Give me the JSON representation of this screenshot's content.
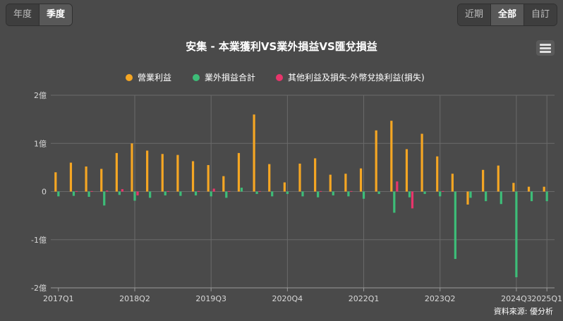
{
  "period_toggle": {
    "items": [
      {
        "label": "年度",
        "active": false
      },
      {
        "label": "季度",
        "active": true
      }
    ]
  },
  "range_toggle": {
    "items": [
      {
        "label": "近期",
        "active": false
      },
      {
        "label": "全部",
        "active": true
      },
      {
        "label": "自訂",
        "active": false
      }
    ]
  },
  "menu": {
    "icon": "hamburger-menu-icon"
  },
  "source_text": "資料來源: 優分析",
  "chart_data": {
    "type": "bar",
    "title": "安集 - 本業獲利VS業外損益VS匯兌損益",
    "xlabel": "",
    "ylabel": "",
    "ylim": [
      -2,
      2
    ],
    "yticks": [
      2,
      1,
      0,
      -1,
      -2
    ],
    "ytick_labels": [
      "2億",
      "1億",
      "0",
      "-1億",
      "-2億"
    ],
    "grid": true,
    "legend_position": "top-center",
    "xtick_labels": [
      "2017Q1",
      "2018Q2",
      "2019Q3",
      "2020Q4",
      "2022Q1",
      "2023Q2",
      "2024Q3",
      "2025Q1"
    ],
    "categories": [
      "2017Q1",
      "2017Q2",
      "2017Q3",
      "2017Q4",
      "2018Q1",
      "2018Q2",
      "2018Q3",
      "2018Q4",
      "2019Q1",
      "2019Q2",
      "2019Q3",
      "2019Q4",
      "2020Q1",
      "2020Q2",
      "2020Q3",
      "2020Q4",
      "2021Q1",
      "2021Q2",
      "2021Q3",
      "2021Q4",
      "2022Q1",
      "2022Q2",
      "2022Q3",
      "2022Q4",
      "2023Q1",
      "2023Q2",
      "2023Q3",
      "2023Q4",
      "2024Q1",
      "2024Q2",
      "2024Q3",
      "2024Q4",
      "2025Q1"
    ],
    "series": [
      {
        "name": "營業利益",
        "color": "#f5a623",
        "values": [
          0.4,
          0.6,
          0.52,
          0.47,
          0.8,
          1.0,
          0.85,
          0.78,
          0.76,
          0.63,
          0.55,
          0.32,
          0.8,
          1.6,
          0.57,
          0.19,
          0.58,
          0.69,
          0.35,
          0.37,
          0.48,
          1.27,
          1.47,
          0.88,
          1.2,
          0.73,
          0.37,
          -0.27,
          0.45,
          0.54,
          0.18,
          0.1,
          0.1
        ]
      },
      {
        "name": "業外損益合計",
        "color": "#3dbd78",
        "values": [
          -0.1,
          -0.09,
          -0.11,
          -0.29,
          -0.07,
          -0.19,
          -0.13,
          -0.08,
          -0.09,
          -0.08,
          -0.1,
          -0.13,
          0.08,
          -0.05,
          -0.1,
          -0.05,
          -0.1,
          -0.12,
          -0.08,
          -0.1,
          -0.15,
          -0.05,
          -0.44,
          -0.12,
          -0.05,
          -0.1,
          -1.4,
          -0.13,
          -0.2,
          -0.26,
          -1.78,
          -0.2,
          -0.2
        ]
      },
      {
        "name": "其他利益及損失-外幣兌換利益(損失)",
        "color": "#e8356b",
        "values": [
          0.0,
          0.01,
          0.01,
          0.02,
          0.05,
          -0.08,
          0.0,
          0.01,
          0.0,
          0.01,
          0.06,
          0.01,
          0.0,
          0.01,
          0.0,
          0.0,
          0.0,
          0.01,
          0.0,
          0.01,
          0.0,
          0.0,
          0.21,
          -0.35,
          0.0,
          0.01,
          0.0,
          0.0,
          0.0,
          0.0,
          0.0,
          0.0,
          0.0
        ]
      }
    ]
  }
}
